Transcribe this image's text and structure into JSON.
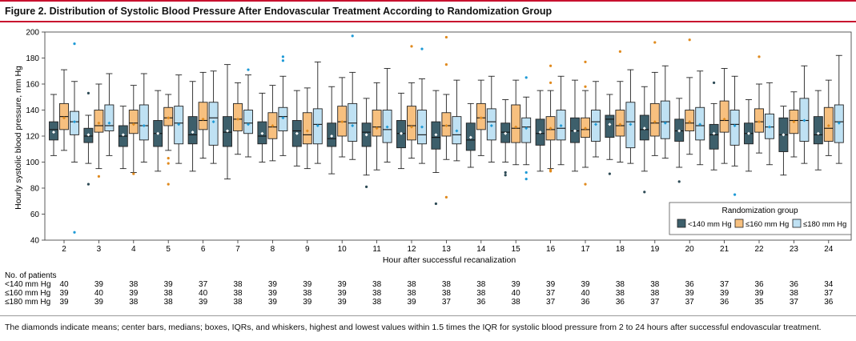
{
  "figure": {
    "title": "Figure 2. Distribution of Systolic Blood Pressure After Endovascular Treatment According to Randomization Group",
    "caption": "The diamonds indicate means; center bars, medians; boxes, IQRs, and whiskers, highest and lowest values within 1.5 times the IQR for systolic blood pressure from 2 to 24 hours after successful endovascular treatment."
  },
  "colors": {
    "lt140": "#3d5f6b",
    "lt160": "#f7c07f",
    "le180": "#bfe1f3",
    "lt140_mark": "#2d4a55",
    "lt160_mark": "#e08a1e",
    "le180_mark": "#1e9ad6",
    "accent": "#c8102e"
  },
  "chart_data": {
    "type": "box",
    "xlabel": "Hour after successful recanalization",
    "ylabel": "Hourly systolic blood pressure, mm Hg",
    "ylim": [
      40,
      200
    ],
    "yticks": [
      40,
      60,
      80,
      100,
      120,
      140,
      160,
      180,
      200
    ],
    "x": [
      2,
      3,
      4,
      5,
      6,
      7,
      8,
      9,
      10,
      11,
      12,
      13,
      14,
      15,
      16,
      17,
      18,
      19,
      20,
      21,
      22,
      23,
      24
    ],
    "legend": {
      "title": "Randomization group",
      "position": "right",
      "entries": [
        "<140 mm Hg",
        "≤160 mm Hg",
        "≤180 mm Hg"
      ]
    },
    "series": [
      {
        "name": "<140 mm Hg",
        "key": "lt140",
        "boxes": [
          {
            "wl": 105,
            "q1": 117,
            "med": 125,
            "q3": 131,
            "wh": 152,
            "mean": 123,
            "out": []
          },
          {
            "wl": 99,
            "q1": 115,
            "med": 120,
            "q3": 126,
            "wh": 136,
            "mean": 121,
            "out": [
              83,
              153
            ]
          },
          {
            "wl": 95,
            "q1": 112,
            "med": 120,
            "q3": 128,
            "wh": 143,
            "mean": 121,
            "out": []
          },
          {
            "wl": 93,
            "q1": 112,
            "med": 122,
            "q3": 132,
            "wh": 155,
            "mean": 122,
            "out": []
          },
          {
            "wl": 93,
            "q1": 114,
            "med": 121,
            "q3": 135,
            "wh": 162,
            "mean": 123,
            "out": []
          },
          {
            "wl": 87,
            "q1": 112,
            "med": 123,
            "q3": 135,
            "wh": 175,
            "mean": 124,
            "out": []
          },
          {
            "wl": 100,
            "q1": 114,
            "med": 120,
            "q3": 131,
            "wh": 153,
            "mean": 122,
            "out": []
          },
          {
            "wl": 97,
            "q1": 112,
            "med": 124,
            "q3": 132,
            "wh": 155,
            "mean": 122,
            "out": []
          },
          {
            "wl": 91,
            "q1": 112,
            "med": 118,
            "q3": 130,
            "wh": 158,
            "mean": 120,
            "out": []
          },
          {
            "wl": 90,
            "q1": 112,
            "med": 123,
            "q3": 130,
            "wh": 149,
            "mean": 121,
            "out": [
              81
            ]
          },
          {
            "wl": 95,
            "q1": 111,
            "med": 122,
            "q3": 132,
            "wh": 153,
            "mean": 122,
            "out": []
          },
          {
            "wl": 92,
            "q1": 110,
            "med": 119,
            "q3": 131,
            "wh": 155,
            "mean": 121,
            "out": [
              68
            ]
          },
          {
            "wl": 96,
            "q1": 109,
            "med": 117,
            "q3": 130,
            "wh": 145,
            "mean": 119,
            "out": []
          },
          {
            "wl": 100,
            "q1": 115,
            "med": 123,
            "q3": 130,
            "wh": 148,
            "mean": 122,
            "out": [
              90,
              92
            ]
          },
          {
            "wl": 93,
            "q1": 113,
            "med": 122,
            "q3": 133,
            "wh": 155,
            "mean": 123,
            "out": []
          },
          {
            "wl": 93,
            "q1": 115,
            "med": 124,
            "q3": 134,
            "wh": 163,
            "mean": 124,
            "out": []
          },
          {
            "wl": 102,
            "q1": 119,
            "med": 133,
            "q3": 136,
            "wh": 152,
            "mean": 129,
            "out": [
              91
            ]
          },
          {
            "wl": 93,
            "q1": 117,
            "med": 125,
            "q3": 136,
            "wh": 158,
            "mean": 126,
            "out": [
              77
            ]
          },
          {
            "wl": 96,
            "q1": 116,
            "med": 124,
            "q3": 133,
            "wh": 149,
            "mean": 124,
            "out": [
              85
            ]
          },
          {
            "wl": 94,
            "q1": 110,
            "med": 121,
            "q3": 129,
            "wh": 145,
            "mean": 122,
            "out": [
              161
            ]
          },
          {
            "wl": 93,
            "q1": 114,
            "med": 122,
            "q3": 130,
            "wh": 148,
            "mean": 122,
            "out": []
          },
          {
            "wl": 90,
            "q1": 108,
            "med": 121,
            "q3": 134,
            "wh": 143,
            "mean": 121,
            "out": []
          },
          {
            "wl": 94,
            "q1": 114,
            "med": 121,
            "q3": 135,
            "wh": 155,
            "mean": 122,
            "out": []
          }
        ]
      },
      {
        "name": "≤160 mm Hg",
        "key": "lt160",
        "boxes": [
          {
            "wl": 109,
            "q1": 125,
            "med": 135,
            "q3": 145,
            "wh": 171,
            "mean": 134,
            "out": []
          },
          {
            "wl": 95,
            "q1": 123,
            "med": 128,
            "q3": 140,
            "wh": 160,
            "mean": 130,
            "out": [
              89
            ]
          },
          {
            "wl": 92,
            "q1": 122,
            "med": 130,
            "q3": 140,
            "wh": 159,
            "mean": 129,
            "out": [
              91
            ]
          },
          {
            "wl": 109,
            "q1": 128,
            "med": 134,
            "q3": 142,
            "wh": 152,
            "mean": 134,
            "out": [
              83,
              99,
              103
            ]
          },
          {
            "wl": 103,
            "q1": 125,
            "med": 132,
            "q3": 146,
            "wh": 169,
            "mean": 133,
            "out": []
          },
          {
            "wl": 106,
            "q1": 124,
            "med": 133,
            "q3": 145,
            "wh": 161,
            "mean": 133,
            "out": []
          },
          {
            "wl": 101,
            "q1": 118,
            "med": 127,
            "q3": 138,
            "wh": 159,
            "mean": 128,
            "out": []
          },
          {
            "wl": 95,
            "q1": 114,
            "med": 121,
            "q3": 138,
            "wh": 157,
            "mean": 124,
            "out": []
          },
          {
            "wl": 104,
            "q1": 120,
            "med": 131,
            "q3": 143,
            "wh": 165,
            "mean": 131,
            "out": []
          },
          {
            "wl": 94,
            "q1": 120,
            "med": 127,
            "q3": 140,
            "wh": 161,
            "mean": 126,
            "out": []
          },
          {
            "wl": 103,
            "q1": 117,
            "med": 128,
            "q3": 143,
            "wh": 161,
            "mean": 127,
            "out": [
              189
            ]
          },
          {
            "wl": 102,
            "q1": 120,
            "med": 128,
            "q3": 138,
            "wh": 152,
            "mean": 128,
            "out": [
              73,
              175,
              196
            ]
          },
          {
            "wl": 105,
            "q1": 125,
            "med": 134,
            "q3": 145,
            "wh": 163,
            "mean": 134,
            "out": []
          },
          {
            "wl": 98,
            "q1": 115,
            "med": 126,
            "q3": 144,
            "wh": 163,
            "mean": 127,
            "out": []
          },
          {
            "wl": 95,
            "q1": 117,
            "med": 125,
            "q3": 135,
            "wh": 155,
            "mean": 126,
            "out": [
              93,
              94,
              161,
              174
            ]
          },
          {
            "wl": 96,
            "q1": 119,
            "med": 125,
            "q3": 134,
            "wh": 155,
            "mean": 126,
            "out": [
              83,
              158,
              177
            ]
          },
          {
            "wl": 100,
            "q1": 120,
            "med": 128,
            "q3": 140,
            "wh": 162,
            "mean": 129,
            "out": [
              185
            ]
          },
          {
            "wl": 105,
            "q1": 120,
            "med": 130,
            "q3": 145,
            "wh": 169,
            "mean": 131,
            "out": [
              192
            ]
          },
          {
            "wl": 106,
            "q1": 124,
            "med": 130,
            "q3": 140,
            "wh": 165,
            "mean": 131,
            "out": [
              194
            ]
          },
          {
            "wl": 99,
            "q1": 123,
            "med": 132,
            "q3": 147,
            "wh": 172,
            "mean": 133,
            "out": []
          },
          {
            "wl": 107,
            "q1": 123,
            "med": 131,
            "q3": 141,
            "wh": 160,
            "mean": 131,
            "out": [
              181
            ]
          },
          {
            "wl": 104,
            "q1": 122,
            "med": 132,
            "q3": 140,
            "wh": 154,
            "mean": 131,
            "out": []
          },
          {
            "wl": 105,
            "q1": 116,
            "med": 126,
            "q3": 142,
            "wh": 163,
            "mean": 128,
            "out": []
          }
        ]
      },
      {
        "name": "≤180 mm Hg",
        "key": "le180",
        "boxes": [
          {
            "wl": 100,
            "q1": 121,
            "med": 131,
            "q3": 139,
            "wh": 162,
            "mean": 131,
            "out": [
              46,
              191
            ]
          },
          {
            "wl": 105,
            "q1": 124,
            "med": 128,
            "q3": 144,
            "wh": 168,
            "mean": 130,
            "out": []
          },
          {
            "wl": 100,
            "q1": 117,
            "med": 128,
            "q3": 144,
            "wh": 168,
            "mean": 128,
            "out": []
          },
          {
            "wl": 99,
            "q1": 114,
            "med": 130,
            "q3": 143,
            "wh": 167,
            "mean": 129,
            "out": []
          },
          {
            "wl": 99,
            "q1": 113,
            "med": 134,
            "q3": 146,
            "wh": 170,
            "mean": 131,
            "out": []
          },
          {
            "wl": 104,
            "q1": 122,
            "med": 130,
            "q3": 140,
            "wh": 167,
            "mean": 129,
            "out": [
              171
            ]
          },
          {
            "wl": 105,
            "q1": 124,
            "med": 135,
            "q3": 142,
            "wh": 166,
            "mean": 134,
            "out": [
              178,
              181
            ]
          },
          {
            "wl": 99,
            "q1": 114,
            "med": 129,
            "q3": 141,
            "wh": 177,
            "mean": 128,
            "out": []
          },
          {
            "wl": 102,
            "q1": 116,
            "med": 130,
            "q3": 145,
            "wh": 169,
            "mean": 128,
            "out": [
              197
            ]
          },
          {
            "wl": 100,
            "q1": 115,
            "med": 125,
            "q3": 140,
            "wh": 172,
            "mean": 127,
            "out": []
          },
          {
            "wl": 99,
            "q1": 114,
            "med": 121,
            "q3": 140,
            "wh": 164,
            "mean": 127,
            "out": [
              187
            ]
          },
          {
            "wl": 101,
            "q1": 114,
            "med": 121,
            "q3": 135,
            "wh": 163,
            "mean": 124,
            "out": []
          },
          {
            "wl": 100,
            "q1": 117,
            "med": 131,
            "q3": 141,
            "wh": 166,
            "mean": 128,
            "out": []
          },
          {
            "wl": 98,
            "q1": 115,
            "med": 127,
            "q3": 134,
            "wh": 150,
            "mean": 126,
            "out": [
              87,
              92,
              165
            ]
          },
          {
            "wl": 98,
            "q1": 117,
            "med": 126,
            "q3": 140,
            "wh": 166,
            "mean": 128,
            "out": []
          },
          {
            "wl": 104,
            "q1": 116,
            "med": 131,
            "q3": 140,
            "wh": 162,
            "mean": 129,
            "out": []
          },
          {
            "wl": 99,
            "q1": 111,
            "med": 131,
            "q3": 146,
            "wh": 171,
            "mean": 129,
            "out": []
          },
          {
            "wl": 103,
            "q1": 118,
            "med": 131,
            "q3": 147,
            "wh": 174,
            "mean": 130,
            "out": []
          },
          {
            "wl": 98,
            "q1": 117,
            "med": 128,
            "q3": 142,
            "wh": 170,
            "mean": 129,
            "out": []
          },
          {
            "wl": 97,
            "q1": 113,
            "med": 129,
            "q3": 140,
            "wh": 166,
            "mean": 128,
            "out": [
              75
            ]
          },
          {
            "wl": 98,
            "q1": 118,
            "med": 127,
            "q3": 137,
            "wh": 161,
            "mean": 127,
            "out": []
          },
          {
            "wl": 99,
            "q1": 116,
            "med": 132,
            "q3": 149,
            "wh": 174,
            "mean": 132,
            "out": []
          },
          {
            "wl": 99,
            "q1": 115,
            "med": 131,
            "q3": 144,
            "wh": 182,
            "mean": 130,
            "out": []
          }
        ]
      }
    ]
  },
  "patients": {
    "heading": "No. of patients",
    "rows": [
      {
        "label": "<140 mm Hg",
        "values": [
          "40",
          "39",
          "38",
          "39",
          "37",
          "38",
          "39",
          "39",
          "39",
          "38",
          "38",
          "38",
          "38",
          "39",
          "39",
          "39",
          "38",
          "38",
          "36",
          "37",
          "36",
          "36",
          "34"
        ]
      },
      {
        "label": "≤160 mm Hg",
        "values": [
          "39",
          "40",
          "39",
          "38",
          "40",
          "38",
          "39",
          "38",
          "39",
          "38",
          "38",
          "38",
          "38",
          "40",
          "37",
          "40",
          "38",
          "38",
          "39",
          "39",
          "39",
          "38",
          "37"
        ]
      },
      {
        "label": "≤180 mm Hg",
        "values": [
          "39",
          "39",
          "38",
          "38",
          "39",
          "38",
          "39",
          "39",
          "39",
          "38",
          "39",
          "37",
          "36",
          "38",
          "37",
          "36",
          "36",
          "37",
          "37",
          "36",
          "35",
          "37",
          "36"
        ]
      }
    ]
  }
}
